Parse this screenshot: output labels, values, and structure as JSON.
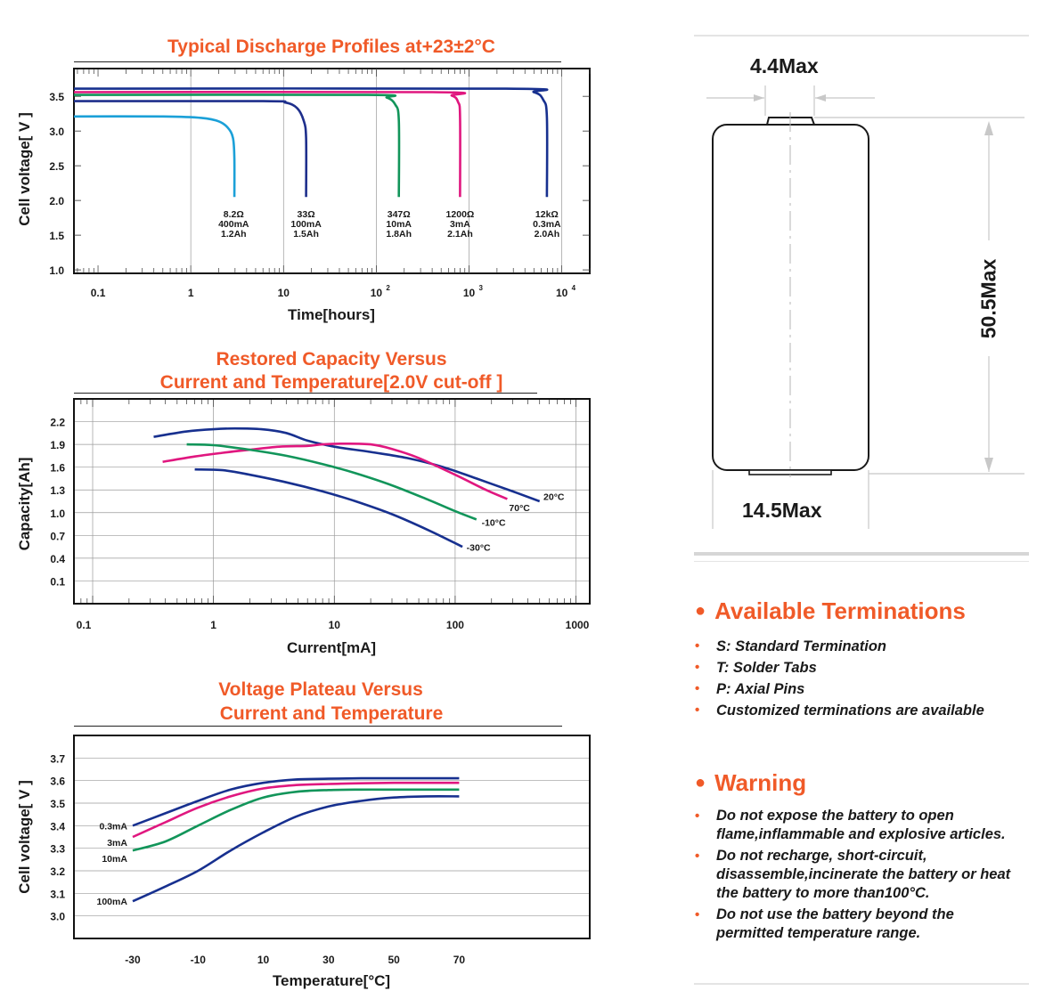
{
  "colors": {
    "accent": "#f05a28",
    "lightblue": "#1ba0d8",
    "navy": "#1e2f8c",
    "green": "#12955a",
    "magenta": "#e0177f",
    "blue": "#17308f"
  },
  "charts_text": {
    "discharge": {
      "title": "Typical Discharge Profiles at+23±2°C",
      "ylabel": "Cell voltage[ V ]",
      "xlabel": "Time[hours]",
      "yticks": [
        "1.0",
        "1.5",
        "2.0",
        "2.5",
        "3.0",
        "3.5"
      ],
      "xticks": [
        "0.1",
        "1",
        "10",
        "10",
        "10",
        "10"
      ],
      "xtick_exps": [
        "2",
        "3",
        "4"
      ]
    },
    "capacity": {
      "title_line1": "Restored Capacity Versus",
      "title_line2": "Current and Temperature[2.0V cut-off ]",
      "ylabel": "Capacity[Ah]",
      "xlabel": "Current[mA]",
      "yticks": [
        "0.1",
        "0.4",
        "0.7",
        "1.0",
        "1.3",
        "1.6",
        "1.9",
        "2.2"
      ],
      "xticks": [
        "0.1",
        "1",
        "10",
        "100",
        "1000"
      ]
    },
    "plateau": {
      "title_line1": "Voltage Plateau Versus",
      "title_line2": "Current and Temperature",
      "ylabel": "Cell voltage[ V ]",
      "xlabel": "Temperature[°C]",
      "yticks": [
        "3.0",
        "3.1",
        "3.2",
        "3.3",
        "3.4",
        "3.5",
        "3.6",
        "3.7"
      ],
      "xticks": [
        "-30",
        "-10",
        "10",
        "30",
        "50",
        "70"
      ]
    }
  },
  "chart_data": [
    {
      "type": "line",
      "title": "Typical Discharge Profiles at+23±2°C",
      "xlabel": "Time[hours]",
      "ylabel": "Cell voltage[ V ]",
      "x_scale": "log",
      "xlim": [
        0.055,
        20000
      ],
      "ylim": [
        0.95,
        3.9
      ],
      "grid": false,
      "series": [
        {
          "name": "8.2Ω 400mA 1.2Ah",
          "color": "#1ba0d8",
          "x": [
            0.055,
            0.5,
            1.3,
            2.0,
            2.5,
            2.85,
            2.95,
            2.95
          ],
          "y": [
            3.21,
            3.21,
            3.19,
            3.14,
            3.05,
            2.9,
            2.6,
            2.05
          ]
        },
        {
          "name": "33Ω 100mA 1.5Ah",
          "color": "#1e2f8c",
          "x": [
            0.055,
            6.0,
            10.5,
            14.0,
            16.5,
            17.5,
            17.5
          ],
          "y": [
            3.43,
            3.43,
            3.41,
            3.33,
            3.15,
            2.9,
            2.05
          ]
        },
        {
          "name": "347Ω 10mA 1.8Ah",
          "color": "#12955a",
          "x": [
            0.055,
            80,
            130,
            160,
            175,
            175
          ],
          "y": [
            3.52,
            3.52,
            3.48,
            3.38,
            3.15,
            2.05
          ]
        },
        {
          "name": "1200Ω 3mA 2.1Ah",
          "color": "#e0177f",
          "x": [
            0.055,
            400,
            650,
            760,
            800,
            800
          ],
          "y": [
            3.56,
            3.56,
            3.51,
            3.42,
            3.2,
            2.05
          ]
        },
        {
          "name": "12kΩ 0.3mA 2.0Ah",
          "color": "#17308f",
          "x": [
            0.055,
            2500,
            5000,
            6300,
            6900,
            6900
          ],
          "y": [
            3.61,
            3.61,
            3.56,
            3.45,
            3.2,
            2.05
          ]
        }
      ],
      "annotations": [
        {
          "x": 2.9,
          "lines": [
            "8.2Ω",
            "400mA",
            "1.2Ah"
          ]
        },
        {
          "x": 17.5,
          "lines": [
            "33Ω",
            "100mA",
            "1.5Ah"
          ]
        },
        {
          "x": 175,
          "lines": [
            "347Ω",
            "10mA",
            "1.8Ah"
          ]
        },
        {
          "x": 800,
          "lines": [
            "1200Ω",
            "3mA",
            "2.1Ah"
          ]
        },
        {
          "x": 6900,
          "lines": [
            "12kΩ",
            "0.3mA",
            "2.0Ah"
          ]
        }
      ]
    },
    {
      "type": "line",
      "title": "Restored Capacity Versus Current and Temperature[2.0V cut-off ]",
      "xlabel": "Current[mA]",
      "ylabel": "Capacity[Ah]",
      "x_scale": "log",
      "xlim": [
        0.07,
        1300
      ],
      "ylim": [
        -0.2,
        2.5
      ],
      "grid": true,
      "series": [
        {
          "name": "20°C",
          "color": "#17308f",
          "x": [
            0.32,
            0.6,
            1.0,
            1.5,
            2.5,
            4.0,
            6.0,
            10,
            20,
            40,
            80,
            150,
            300,
            500
          ],
          "y": [
            2.0,
            2.07,
            2.1,
            2.11,
            2.1,
            2.05,
            1.95,
            1.87,
            1.8,
            1.72,
            1.6,
            1.45,
            1.28,
            1.15
          ]
        },
        {
          "name": "70°C",
          "color": "#e0177f",
          "x": [
            0.38,
            0.7,
            1.2,
            2.0,
            3.5,
            6.0,
            8.0,
            12,
            20,
            30,
            50,
            100,
            180,
            270
          ],
          "y": [
            1.67,
            1.74,
            1.79,
            1.83,
            1.87,
            1.88,
            1.9,
            1.91,
            1.9,
            1.84,
            1.72,
            1.5,
            1.3,
            1.18
          ]
        },
        {
          "name": "-10°C",
          "color": "#12955a",
          "x": [
            0.6,
            1.0,
            2.0,
            4.0,
            8.0,
            15,
            30,
            60,
            100,
            150
          ],
          "y": [
            1.9,
            1.89,
            1.83,
            1.75,
            1.64,
            1.52,
            1.36,
            1.17,
            1.02,
            0.91
          ]
        },
        {
          "name": "-30°C",
          "color": "#17308f",
          "x": [
            0.7,
            1.2,
            2.0,
            4.0,
            8.0,
            15,
            30,
            60,
            115
          ],
          "y": [
            1.57,
            1.56,
            1.5,
            1.4,
            1.28,
            1.15,
            0.98,
            0.77,
            0.55
          ]
        }
      ],
      "labels": [
        {
          "text": "20°C",
          "x": 520,
          "y": 1.17
        },
        {
          "text": "70°C",
          "x": 270,
          "y": 1.02
        },
        {
          "text": "-10°C",
          "x": 160,
          "y": 0.83
        },
        {
          "text": "-30°C",
          "x": 120,
          "y": 0.5
        }
      ]
    },
    {
      "type": "line",
      "title": "Voltage Plateau Versus Current and Temperature",
      "xlabel": "Temperature[°C]",
      "ylabel": "Cell voltage[ V ]",
      "x_scale": "linear",
      "xlim": [
        -48,
        110
      ],
      "ylim": [
        2.9,
        3.8
      ],
      "grid": true,
      "series": [
        {
          "name": "0.3mA",
          "color": "#17308f",
          "x": [
            -30,
            -20,
            -10,
            0,
            10,
            20,
            30,
            40,
            50,
            60,
            70
          ],
          "y": [
            3.4,
            3.455,
            3.51,
            3.56,
            3.59,
            3.605,
            3.608,
            3.61,
            3.61,
            3.61,
            3.61
          ]
        },
        {
          "name": "3mA",
          "color": "#e0177f",
          "x": [
            -30,
            -20,
            -10,
            0,
            10,
            20,
            30,
            40,
            50,
            60,
            70
          ],
          "y": [
            3.35,
            3.415,
            3.48,
            3.53,
            3.565,
            3.58,
            3.585,
            3.588,
            3.59,
            3.59,
            3.59
          ]
        },
        {
          "name": "10mA",
          "color": "#12955a",
          "x": [
            -30,
            -20,
            -10,
            0,
            10,
            20,
            30,
            40,
            50,
            60,
            70
          ],
          "y": [
            3.29,
            3.33,
            3.4,
            3.47,
            3.525,
            3.55,
            3.558,
            3.56,
            3.56,
            3.56,
            3.56
          ]
        },
        {
          "name": "100mA",
          "color": "#17308f",
          "x": [
            -30,
            -20,
            -10,
            0,
            10,
            20,
            30,
            40,
            50,
            60,
            70
          ],
          "y": [
            3.065,
            3.13,
            3.2,
            3.29,
            3.37,
            3.44,
            3.485,
            3.51,
            3.525,
            3.53,
            3.53
          ]
        }
      ]
    }
  ],
  "drawing": {
    "top_dim": "4.4Max",
    "height_dim": "50.5Max",
    "width_dim": "14.5Max"
  },
  "terminations": {
    "title": "Available Terminations",
    "items": [
      "S: Standard Termination",
      "T: Solder Tabs",
      "P: Axial Pins",
      "Customized terminations are available"
    ]
  },
  "warning": {
    "title": "Warning",
    "items": [
      [
        "Do not expose the battery to open",
        "flame,inflammable and explosive articles."
      ],
      [
        "Do not recharge, short-circuit,",
        "disassemble,incinerate the battery or heat",
        "the battery to more than100°C."
      ],
      [
        "Do not use the battery beyond the",
        "permitted temperature range."
      ]
    ]
  }
}
